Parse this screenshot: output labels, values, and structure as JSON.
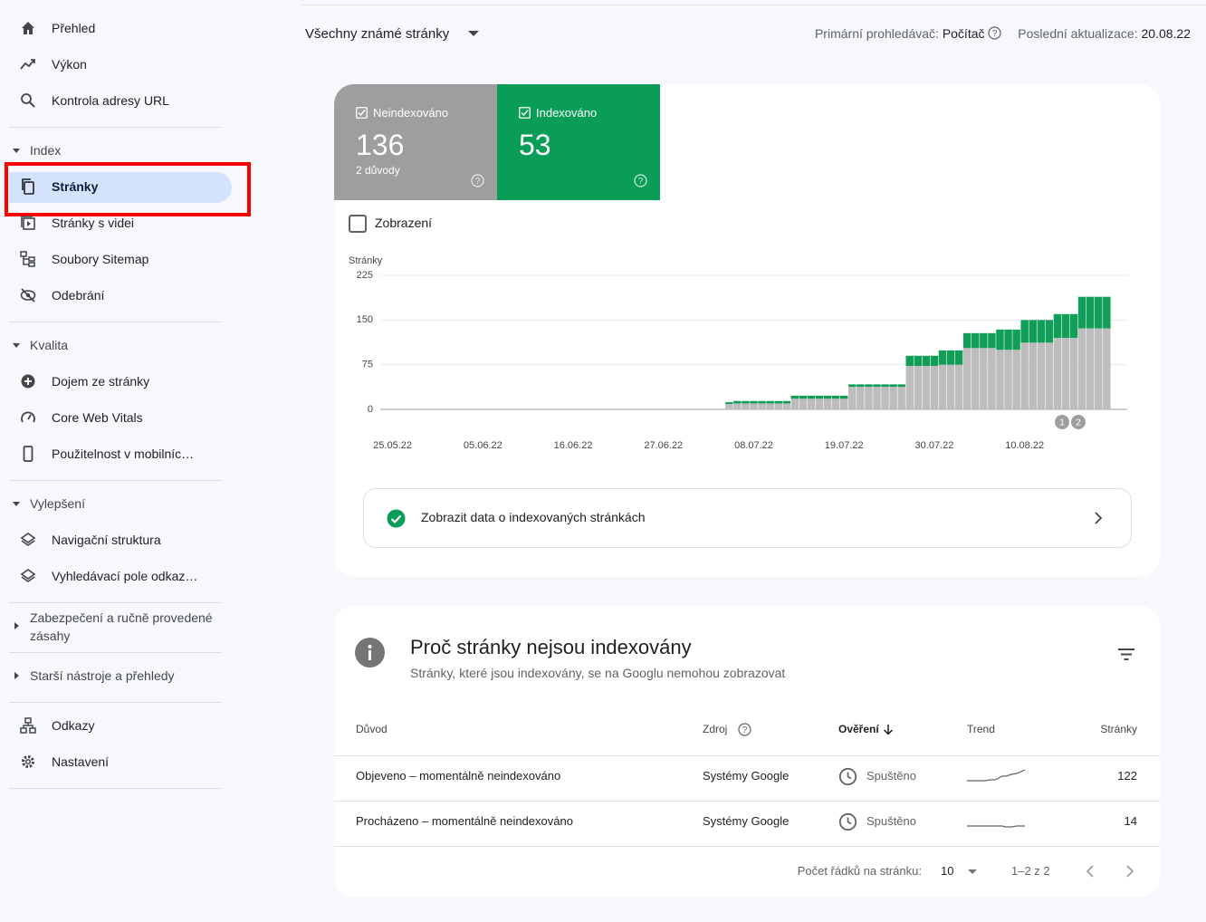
{
  "sidebar": {
    "main": [
      "Přehled",
      "Výkon",
      "Kontrola adresy URL"
    ],
    "index": {
      "title": "Index",
      "items": [
        "Stránky",
        "Stránky s videi",
        "Soubory Sitemap",
        "Odebrání"
      ]
    },
    "quality": {
      "title": "Kvalita",
      "items": [
        "Dojem ze stránky",
        "Core Web Vitals",
        "Použitelnost v mobilníc…"
      ]
    },
    "enhancements": {
      "title": "Vylepšení",
      "items": [
        "Navigační struktura",
        "Vyhledávací pole odkaz…"
      ]
    },
    "security": "Zabezpečení a ručně provedené zásahy",
    "legacy": "Starší nástroje a přehledy",
    "bottom": [
      "Odkazy",
      "Nastavení"
    ]
  },
  "header": {
    "filter": "Všechny známé stránky",
    "crawler_label": "Primární prohledávač:",
    "crawler": "Počítač",
    "update_label": "Poslední aktualizace:",
    "update": "20.08.22"
  },
  "summary": [
    {
      "value": 136,
      "note": "2 důvody"
    },
    {
      "value": 53
    }
  ],
  "toggle": "Zobrazení",
  "chart_data": {
    "type": "bar",
    "stacked": true,
    "y_label": "Stránky",
    "ylim": [
      0,
      225
    ],
    "yticks": [
      0,
      75,
      150,
      225
    ],
    "grid": true,
    "categories": [
      null,
      "25.05.22",
      null,
      null,
      null,
      null,
      null,
      null,
      null,
      null,
      null,
      null,
      "05.06.22",
      null,
      null,
      null,
      null,
      null,
      null,
      null,
      null,
      null,
      null,
      "16.06.22",
      null,
      null,
      null,
      null,
      null,
      null,
      null,
      null,
      null,
      null,
      "27.06.22",
      null,
      null,
      null,
      null,
      null,
      null,
      null,
      null,
      null,
      null,
      "08.07.22",
      null,
      null,
      null,
      null,
      null,
      null,
      null,
      null,
      null,
      null,
      "19.07.22",
      null,
      null,
      null,
      null,
      null,
      null,
      null,
      null,
      null,
      null,
      "30.07.22",
      null,
      null,
      null,
      null,
      null,
      null,
      null,
      null,
      null,
      null,
      "10.08.22",
      null,
      null,
      null,
      null,
      null,
      null,
      null,
      null,
      null,
      null,
      null,
      null
    ],
    "series": [
      {
        "name": "Neindexováno",
        "color": "#bdbdbd",
        "values": [
          null,
          null,
          null,
          null,
          null,
          null,
          null,
          null,
          null,
          null,
          null,
          null,
          null,
          null,
          null,
          null,
          null,
          null,
          null,
          null,
          null,
          null,
          null,
          null,
          null,
          null,
          null,
          null,
          null,
          null,
          null,
          null,
          null,
          null,
          null,
          null,
          null,
          null,
          null,
          null,
          null,
          null,
          9,
          10,
          10,
          10,
          10,
          10,
          10,
          10,
          18,
          18,
          18,
          18,
          18,
          18,
          18,
          38,
          38,
          38,
          38,
          38,
          38,
          38,
          73,
          73,
          73,
          73,
          75,
          75,
          75,
          103,
          103,
          103,
          103,
          100,
          100,
          100,
          112,
          112,
          112,
          112,
          120,
          120,
          120,
          136,
          136,
          136,
          136,
          null,
          null
        ]
      },
      {
        "name": "Indexováno",
        "color": "#0f9d58",
        "values": [
          null,
          null,
          null,
          null,
          null,
          null,
          null,
          null,
          null,
          null,
          null,
          null,
          null,
          null,
          null,
          null,
          null,
          null,
          null,
          null,
          null,
          null,
          null,
          null,
          null,
          null,
          null,
          null,
          null,
          null,
          null,
          null,
          null,
          null,
          null,
          null,
          null,
          null,
          null,
          null,
          null,
          null,
          3,
          4,
          4,
          4,
          4,
          4,
          4,
          4,
          5,
          5,
          5,
          5,
          5,
          5,
          5,
          4,
          4,
          4,
          4,
          4,
          4,
          4,
          17,
          17,
          17,
          17,
          24,
          24,
          24,
          25,
          25,
          25,
          25,
          34,
          34,
          34,
          38,
          38,
          38,
          38,
          40,
          40,
          40,
          53,
          53,
          53,
          53,
          null,
          null
        ]
      }
    ],
    "annotations": [
      "1",
      "2"
    ]
  },
  "link": "Zobrazit data o indexovaných stránkách",
  "table": {
    "title": "Proč stránky nejsou indexovány",
    "subtitle": "Stránky, které jsou indexovány, se na Googlu nemohou zobrazovat",
    "columns": [
      "Důvod",
      "Zdroj",
      "Ověření",
      "Trend",
      "Stránky"
    ],
    "rows": [
      [
        "Objeveno – momentálně neindexováno",
        "Systémy Google",
        "Spuštěno",
        122
      ],
      [
        "Procházeno – momentálně neindexováno",
        "Systémy Google",
        "Spuštěno",
        14
      ]
    ],
    "pagination": {
      "rows_label": "Počet řádků na stránku:",
      "rows_per_page": 10,
      "range": "1–2 z 2"
    }
  }
}
